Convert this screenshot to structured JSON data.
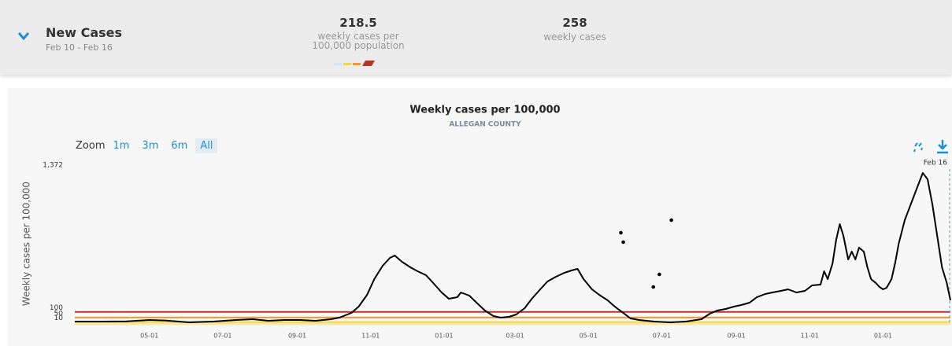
{
  "header": {
    "title": "New Cases",
    "subtitle": "Feb 10 - Feb 16",
    "stats": [
      {
        "value": "218.5",
        "label": "weekly cases per 100,000 population"
      },
      {
        "value": "258",
        "label": "weekly cases"
      }
    ]
  },
  "zoom": {
    "label": "Zoom",
    "options": [
      "1m",
      "3m",
      "6m",
      "All"
    ],
    "selected": 3
  },
  "chart_data": {
    "type": "line",
    "title": "Weekly cases per 100,000",
    "subtitle": "ALLEGAN COUNTY",
    "ylabel": "Weekly cases per 100,000",
    "xlim": [
      0,
      728
    ],
    "ylim": [
      0,
      1372
    ],
    "yticks": [
      10,
      50,
      100,
      {
        "value": 1372,
        "label": "1,372"
      }
    ],
    "xticks": [
      {
        "value": 62,
        "label": "05-01"
      },
      {
        "value": 123,
        "label": "07-01"
      },
      {
        "value": 185,
        "label": "09-01"
      },
      {
        "value": 246,
        "label": "11-01"
      },
      {
        "value": 307,
        "label": "01-01"
      },
      {
        "value": 366,
        "label": "03-01"
      },
      {
        "value": 427,
        "label": "05-01"
      },
      {
        "value": 488,
        "label": "07-01"
      },
      {
        "value": 550,
        "label": "09-01"
      },
      {
        "value": 611,
        "label": "11-01"
      },
      {
        "value": 672,
        "label": "01-01"
      }
    ],
    "thresholds": [
      {
        "value": 10,
        "color": "#f3d54e"
      },
      {
        "value": 50,
        "color": "#ee9a2e"
      },
      {
        "value": 100,
        "color": "#b8322a"
      }
    ],
    "annotation": {
      "x": 728,
      "label": "Feb 16"
    },
    "series": [
      {
        "color": "#000000",
        "x": [
          0,
          23,
          43,
          62,
          75,
          95,
          115,
          134,
          148,
          161,
          174,
          187,
          200,
          213,
          220,
          230,
          236,
          243,
          249,
          256,
          262,
          266,
          272,
          279,
          285,
          292,
          298,
          305,
          311,
          318,
          321,
          328,
          334,
          341,
          348,
          354,
          361,
          367,
          374,
          380,
          387,
          393,
          400,
          407,
          413,
          418,
          423,
          430,
          436,
          443,
          449,
          456,
          462,
          469,
          482,
          495,
          508,
          521,
          528,
          534,
          541,
          548,
          554,
          561,
          567,
          574,
          580,
          587,
          593,
          600,
          607,
          613,
          620,
          623,
          626,
          630,
          633,
          636,
          639,
          643,
          646,
          649,
          652,
          656,
          659,
          662,
          666,
          669,
          672,
          675,
          679,
          682,
          685,
          690,
          695,
          700,
          705,
          709,
          713,
          717,
          721,
          725,
          728
        ],
        "values": [
          14,
          14,
          16,
          28,
          24,
          7,
          14,
          28,
          35,
          21,
          28,
          28,
          21,
          35,
          49,
          91,
          147,
          252,
          392,
          511,
          581,
          602,
          546,
          497,
          462,
          427,
          357,
          273,
          217,
          231,
          273,
          245,
          182,
          112,
          63,
          49,
          56,
          77,
          133,
          217,
          301,
          371,
          413,
          448,
          469,
          483,
          392,
          301,
          252,
          203,
          147,
          91,
          42,
          28,
          14,
          7,
          14,
          35,
          84,
          112,
          126,
          147,
          161,
          182,
          231,
          259,
          273,
          287,
          301,
          273,
          287,
          336,
          343,
          462,
          392,
          532,
          742,
          882,
          777,
          567,
          637,
          567,
          672,
          637,
          497,
          392,
          357,
          322,
          301,
          315,
          392,
          532,
          707,
          917,
          1057,
          1197,
          1337,
          1281,
          1057,
          777,
          497,
          357,
          203
        ]
      }
    ],
    "outliers": {
      "color": "#000000",
      "x": [
        454,
        456,
        496,
        486,
        481
      ],
      "values": [
        805,
        721,
        917,
        434,
        322
      ]
    }
  }
}
